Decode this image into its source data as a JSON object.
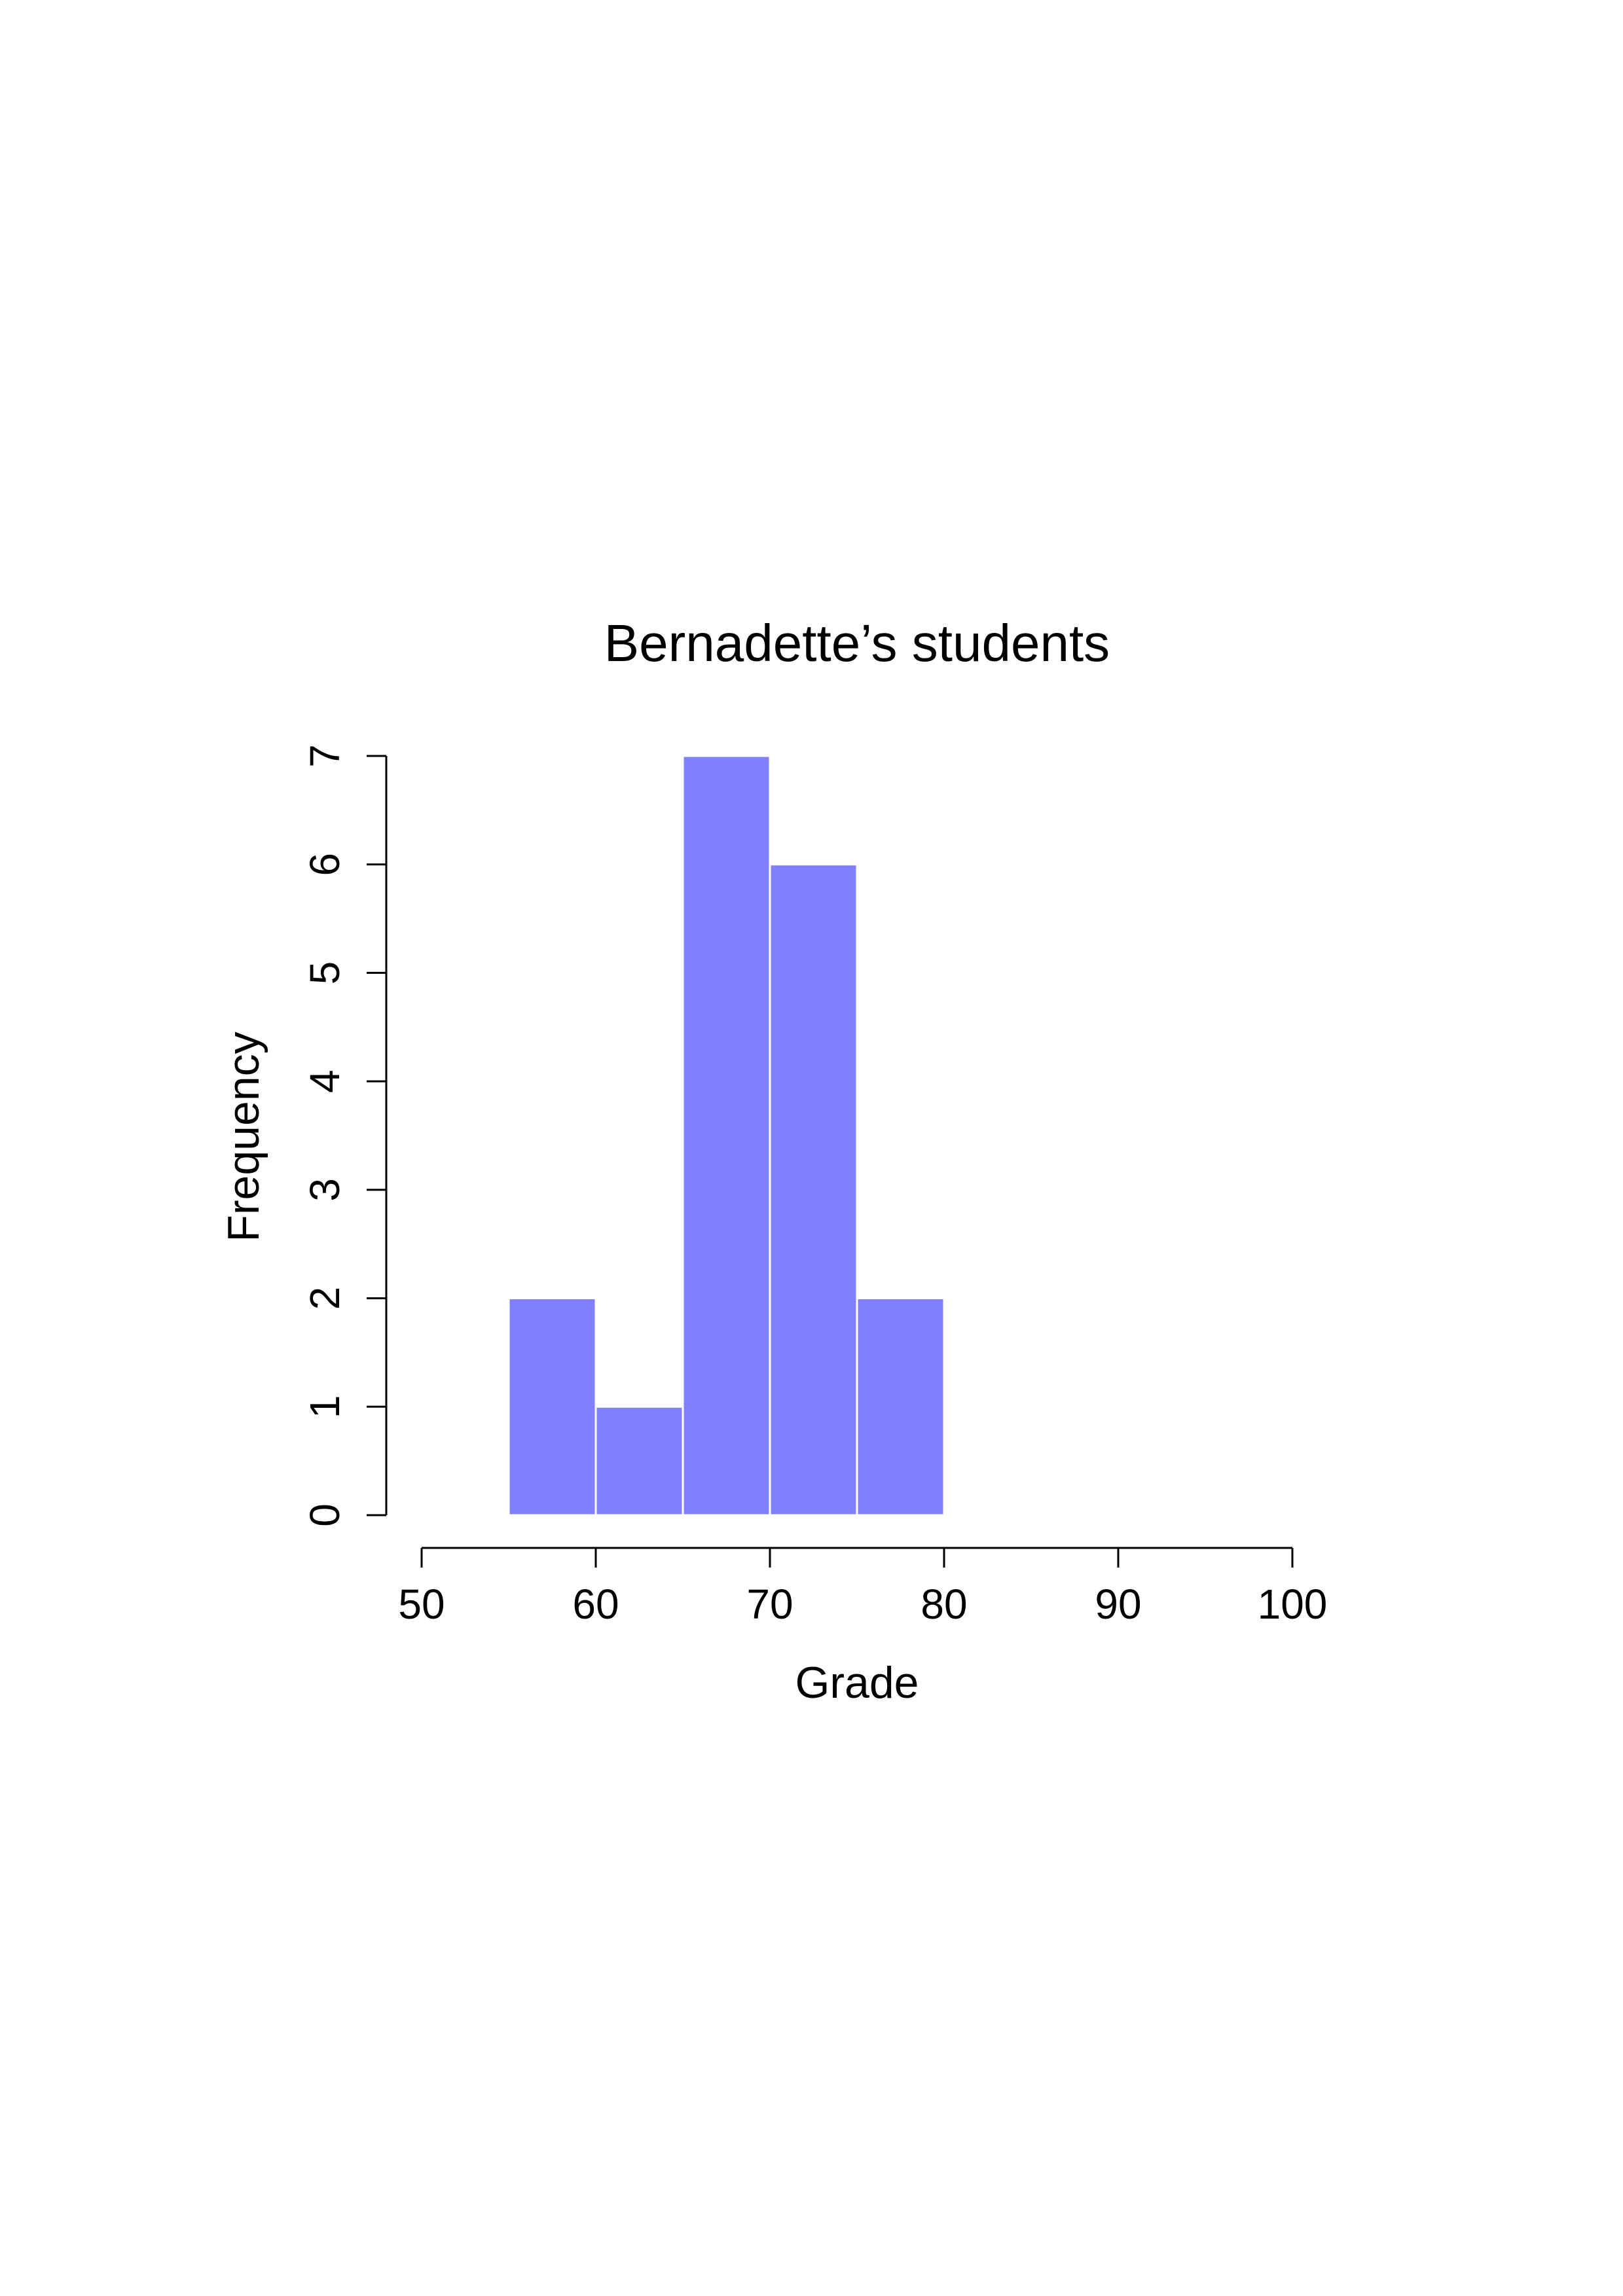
{
  "chart_data": {
    "type": "bar",
    "title": "Bernadette’s students",
    "xlabel": "Grade",
    "ylabel": "Frequency",
    "bins": [
      {
        "from": 55,
        "to": 60,
        "count": 2
      },
      {
        "from": 60,
        "to": 65,
        "count": 1
      },
      {
        "from": 65,
        "to": 70,
        "count": 7
      },
      {
        "from": 70,
        "to": 75,
        "count": 6
      },
      {
        "from": 75,
        "to": 80,
        "count": 2
      }
    ],
    "xlim": [
      50,
      100
    ],
    "ylim": [
      0,
      7
    ],
    "xticks": [
      "50",
      "60",
      "70",
      "80",
      "90",
      "100"
    ],
    "yticks": [
      "0",
      "1",
      "2",
      "3",
      "4",
      "5",
      "6",
      "7"
    ],
    "grid": false,
    "bar_color": "#8080ff",
    "bar_border_color": "#ffffff"
  }
}
